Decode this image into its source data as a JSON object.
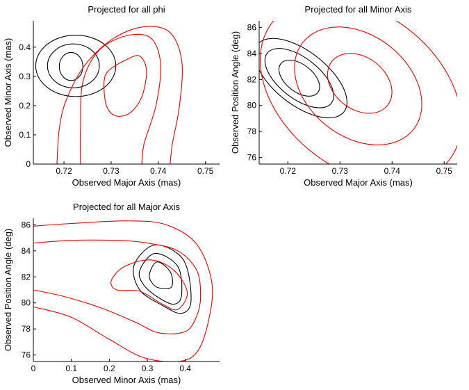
{
  "figure": {
    "colors": {
      "observed_contour": "#000000",
      "model_contour": "#e00000"
    }
  },
  "chart_data": [
    {
      "type": "line",
      "title": "Projected for all phi",
      "xlabel": "Observed Major Axis (mas)",
      "ylabel": "Observed Minor Axis (mas)",
      "xlim": [
        0.7135,
        0.753
      ],
      "ylim": [
        0.0,
        0.49
      ],
      "xticks": [
        0.72,
        0.73,
        0.74,
        0.75
      ],
      "xtick_labels": [
        "0.72",
        "0.73",
        "0.74",
        "0.75"
      ],
      "yticks": [
        0,
        0.1,
        0.2,
        0.3,
        0.4
      ],
      "ytick_labels": [
        "0",
        "0.1",
        "0.2",
        "0.3",
        "0.4"
      ],
      "series": [
        {
          "name": "observed contour 1",
          "color": "black",
          "shape": "ellipse",
          "cx": 0.7215,
          "cy": 0.334,
          "rx": 0.0025,
          "ry": 0.048,
          "rotation_deg": 0
        },
        {
          "name": "observed contour 2",
          "color": "black",
          "shape": "ellipse",
          "cx": 0.722,
          "cy": 0.336,
          "rx": 0.0055,
          "ry": 0.075,
          "rotation_deg": 0
        },
        {
          "name": "observed contour 3",
          "color": "black",
          "shape": "ellipse",
          "cx": 0.7225,
          "cy": 0.336,
          "rx": 0.0085,
          "ry": 0.105,
          "rotation_deg": 0
        },
        {
          "name": "model contour inner",
          "color": "red",
          "x": [
            0.7285,
            0.729,
            0.731,
            0.734,
            0.7365,
            0.7375,
            0.736,
            0.733,
            0.7295,
            0.7285
          ],
          "y": [
            0.28,
            0.2,
            0.165,
            0.175,
            0.23,
            0.32,
            0.37,
            0.355,
            0.32,
            0.28
          ]
        },
        {
          "name": "model contour middle",
          "color": "red",
          "x": [
            0.7235,
            0.7235,
            0.724,
            0.7275,
            0.7335,
            0.7385,
            0.7405,
            0.7395,
            0.737,
            0.7365
          ],
          "y": [
            0.0,
            0.12,
            0.28,
            0.39,
            0.44,
            0.43,
            0.34,
            0.2,
            0.07,
            0.0
          ]
        },
        {
          "name": "model contour outer",
          "color": "red",
          "x": [
            0.7185,
            0.719,
            0.7205,
            0.7245,
            0.7305,
            0.737,
            0.7425,
            0.745,
            0.7445,
            0.743,
            0.7425
          ],
          "y": [
            0.0,
            0.12,
            0.22,
            0.34,
            0.43,
            0.47,
            0.45,
            0.35,
            0.2,
            0.07,
            0.0
          ]
        }
      ]
    },
    {
      "type": "line",
      "title": "Projected for all Minor Axis",
      "xlabel": "Observed Major Axis (mas)",
      "ylabel": "Observed Position Angle (deg)",
      "xlim": [
        0.7145,
        0.7525
      ],
      "ylim": [
        75.5,
        86.5
      ],
      "xticks": [
        0.72,
        0.73,
        0.74,
        0.75
      ],
      "xtick_labels": [
        "0.72",
        "0.73",
        "0.74",
        "0.75"
      ],
      "yticks": [
        76,
        78,
        80,
        82,
        84,
        86
      ],
      "ytick_labels": [
        "76",
        "78",
        "80",
        "82",
        "84",
        "86"
      ],
      "series": [
        {
          "name": "observed contour 1",
          "color": "black",
          "shape": "ellipse",
          "cx": 0.7222,
          "cy": 82.1,
          "rx": 0.0045,
          "ry": 1.05,
          "rotation_deg": 38
        },
        {
          "name": "observed contour 2",
          "color": "black",
          "shape": "ellipse",
          "cx": 0.7222,
          "cy": 82.1,
          "rx": 0.0078,
          "ry": 1.55,
          "rotation_deg": 38
        },
        {
          "name": "observed contour 3",
          "color": "black",
          "shape": "ellipse",
          "cx": 0.7225,
          "cy": 82.1,
          "rx": 0.0105,
          "ry": 2.05,
          "rotation_deg": 38
        },
        {
          "name": "model contour inner",
          "color": "red",
          "shape": "ellipse",
          "cx": 0.7338,
          "cy": 81.7,
          "rx": 0.0068,
          "ry": 2.0,
          "rotation_deg": 38
        },
        {
          "name": "model contour middle",
          "color": "red",
          "shape": "ellipse",
          "cx": 0.7335,
          "cy": 81.5,
          "rx": 0.0135,
          "ry": 3.9,
          "rotation_deg": 38
        },
        {
          "name": "model contour outer",
          "color": "red",
          "shape": "ellipse",
          "cx": 0.734,
          "cy": 81.1,
          "rx": 0.0215,
          "ry": 6.0,
          "rotation_deg": 38
        }
      ]
    },
    {
      "type": "line",
      "title": "Projected for all Major Axis",
      "xlabel": "Observed Minor Axis (mas)",
      "ylabel": "Observed Position Angle (deg)",
      "xlim": [
        0.0,
        0.49
      ],
      "ylim": [
        75.5,
        86.5
      ],
      "xticks": [
        0,
        0.1,
        0.2,
        0.3,
        0.4
      ],
      "xtick_labels": [
        "0",
        "0.1",
        "0.2",
        "0.3",
        "0.4"
      ],
      "yticks": [
        76,
        78,
        80,
        82,
        84,
        86
      ],
      "ytick_labels": [
        "76",
        "78",
        "80",
        "82",
        "84",
        "86"
      ],
      "series": [
        {
          "name": "observed contour 1",
          "color": "black",
          "x": [
            0.305,
            0.325,
            0.36,
            0.365,
            0.345,
            0.32,
            0.305
          ],
          "y": [
            82.1,
            83.15,
            82.4,
            81.3,
            81.1,
            81.3,
            82.1
          ]
        },
        {
          "name": "observed contour 2",
          "color": "black",
          "x": [
            0.28,
            0.32,
            0.38,
            0.39,
            0.37,
            0.33,
            0.29,
            0.28
          ],
          "y": [
            82.5,
            83.8,
            82.8,
            80.6,
            79.9,
            80.4,
            81.4,
            82.5
          ]
        },
        {
          "name": "observed contour 3",
          "color": "black",
          "x": [
            0.265,
            0.32,
            0.395,
            0.415,
            0.39,
            0.34,
            0.28,
            0.265
          ],
          "y": [
            82.9,
            84.45,
            83.3,
            80.2,
            79.2,
            79.8,
            81.0,
            82.9
          ]
        },
        {
          "name": "model contour inner",
          "color": "red",
          "x": [
            0.205,
            0.24,
            0.31,
            0.37,
            0.405,
            0.38,
            0.34,
            0.28,
            0.22,
            0.205
          ],
          "y": [
            81.7,
            82.8,
            83.3,
            82.5,
            80.8,
            79.5,
            79.9,
            80.9,
            81.0,
            81.7
          ]
        },
        {
          "name": "model contour middle",
          "color": "red",
          "x": [
            0.0,
            0.1,
            0.22,
            0.3,
            0.38,
            0.43,
            0.44,
            0.43,
            0.4,
            0.33,
            0.27,
            0.18,
            0.08,
            0.0
          ],
          "y": [
            84.6,
            84.8,
            84.8,
            84.6,
            84.0,
            82.5,
            80.5,
            79.0,
            77.8,
            77.7,
            78.5,
            79.6,
            80.5,
            81.0
          ]
        },
        {
          "name": "model contour outer",
          "color": "red",
          "x": [
            0.0,
            0.1,
            0.25,
            0.35,
            0.43,
            0.47,
            0.46,
            0.43,
            0.38,
            0.29,
            0.2,
            0.1,
            0.0
          ],
          "y": [
            85.9,
            86.1,
            86.3,
            86.0,
            84.5,
            81.5,
            78.5,
            76.2,
            75.5,
            75.8,
            77.2,
            78.9,
            79.7
          ]
        }
      ]
    }
  ]
}
